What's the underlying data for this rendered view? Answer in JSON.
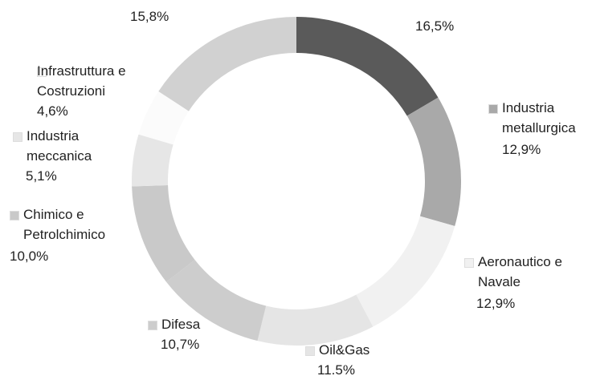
{
  "chart_data": {
    "type": "donut",
    "categories": [
      null,
      "Industria metallurgica",
      "Aeronautico e Navale",
      "Oil&Gas",
      "Difesa",
      "Chimico e Petrolchimico",
      "Industria meccanica",
      "Infrastruttura e Costruzioni",
      null
    ],
    "values": [
      16.5,
      12.9,
      12.9,
      11.5,
      10.7,
      10.0,
      5.1,
      4.6,
      15.8
    ],
    "value_labels": [
      "16,5%",
      "12,9%",
      "12,9%",
      "11.5%",
      "10,7%",
      "10,0%",
      "5,1%",
      "4,6%",
      "15,8%"
    ],
    "colors": [
      "#5a5a5a",
      "#a9a9a9",
      "#f1f1f1",
      "#e5e5e5",
      "#cdcdcd",
      "#c9c9c9",
      "#e6e6e6",
      "#fbfbfb",
      "#d1d1d1"
    ]
  }
}
